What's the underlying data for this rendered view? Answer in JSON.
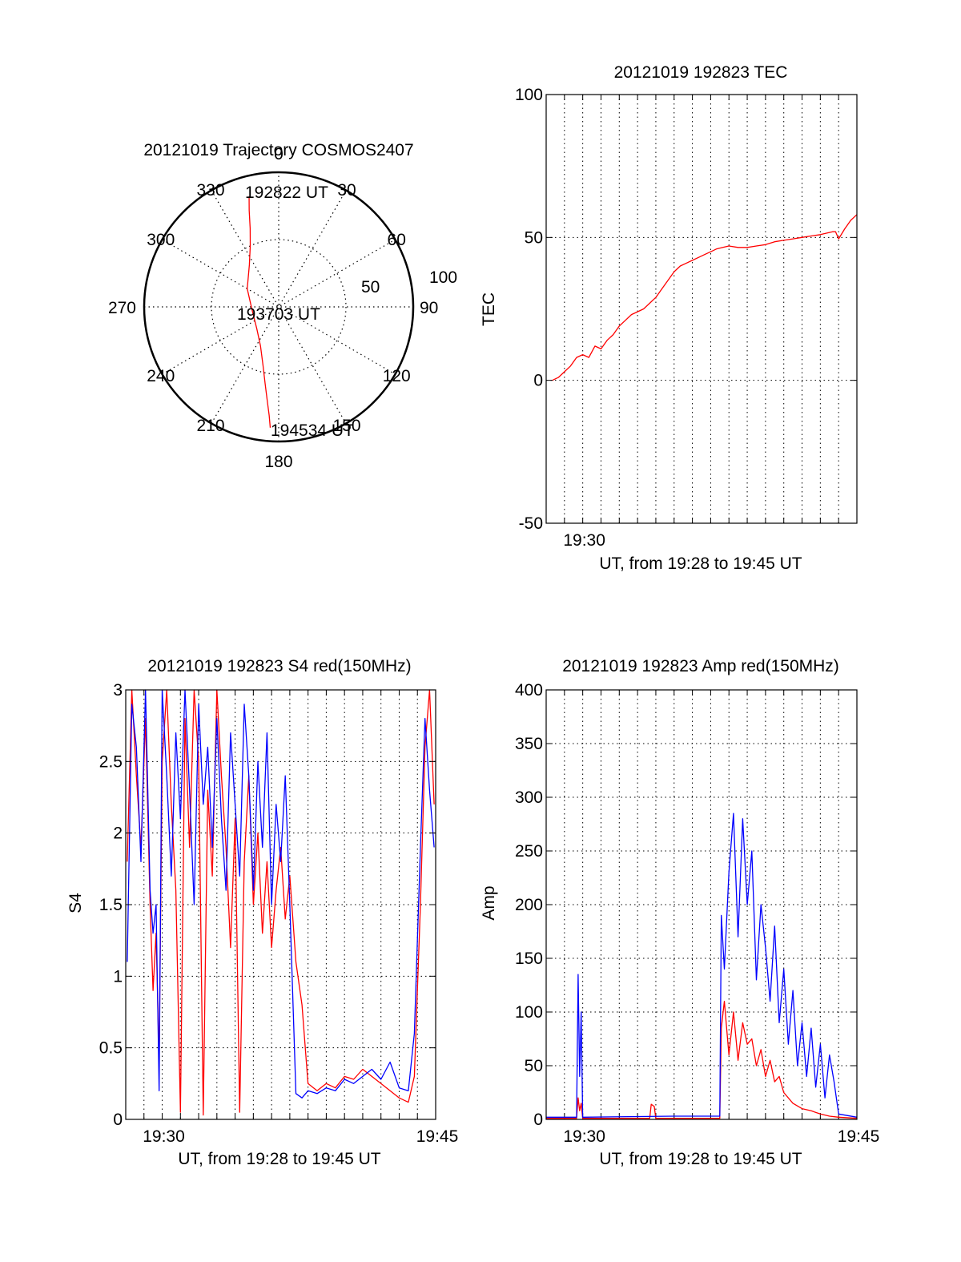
{
  "chart_data": [
    {
      "type": "polar",
      "title": "20121019 Trajectory COSMOS2407",
      "azimuth_labels": [
        "0",
        "30",
        "60",
        "90",
        "120",
        "150",
        "180",
        "210",
        "240",
        "270",
        "300",
        "330"
      ],
      "radial_labels": [
        "50",
        "100"
      ],
      "radial_max": 100,
      "annotations": [
        "192822 UT",
        "193703 UT",
        "194534 UT"
      ],
      "track": {
        "color": "#ff0000",
        "points": [
          [
            345,
            85
          ],
          [
            343,
            75
          ],
          [
            340,
            62
          ],
          [
            335,
            50
          ],
          [
            325,
            38
          ],
          [
            300,
            27
          ],
          [
            265,
            20
          ],
          [
            225,
            23
          ],
          [
            205,
            32
          ],
          [
            195,
            45
          ],
          [
            190,
            58
          ],
          [
            187,
            70
          ],
          [
            185,
            81
          ],
          [
            184,
            90
          ]
        ]
      }
    },
    {
      "type": "line",
      "title": "20121019 192823 TEC",
      "xlabel": "UT, from 19:28 to 19:45 UT",
      "ylabel": "TEC",
      "xlim": [
        "19:28",
        "19:45"
      ],
      "ylim": [
        -50,
        100
      ],
      "xticks": [
        "19:30"
      ],
      "yticks": [
        "-50",
        "0",
        "50",
        "100"
      ],
      "grid": true,
      "series": [
        {
          "color": "#ff0000",
          "x": [
            "19:28:20",
            "19:28:40",
            "19:29:00",
            "19:29:20",
            "19:29:40",
            "19:30:00",
            "19:30:20",
            "19:30:40",
            "19:31:00",
            "19:31:20",
            "19:31:40",
            "19:32:00",
            "19:32:20",
            "19:32:40",
            "19:33:00",
            "19:33:20",
            "19:33:40",
            "19:34:00",
            "19:34:20",
            "19:34:40",
            "19:35:00",
            "19:35:20",
            "19:35:40",
            "19:36:00",
            "19:36:20",
            "19:36:40",
            "19:37:00",
            "19:37:20",
            "19:37:40",
            "19:38:00",
            "19:38:30",
            "19:39:00",
            "19:39:30",
            "19:40:00",
            "19:40:30",
            "19:41:00",
            "19:41:30",
            "19:42:00",
            "19:42:30",
            "19:43:00",
            "19:43:20",
            "19:43:40",
            "19:43:50",
            "19:44:00",
            "19:44:20",
            "19:44:40",
            "19:45:00"
          ],
          "y": [
            0,
            1,
            3,
            5,
            8,
            9,
            8,
            12,
            11,
            14,
            16,
            19,
            21,
            23,
            24,
            25,
            27,
            29,
            32,
            35,
            38,
            40,
            41,
            42,
            43,
            44,
            45,
            46,
            46.5,
            47,
            46.5,
            46.5,
            47,
            47.5,
            48.5,
            49,
            49.5,
            50,
            50.5,
            51,
            51.5,
            52,
            52,
            49.5,
            53,
            56,
            58
          ]
        }
      ]
    },
    {
      "type": "line",
      "title": "20121019 192823 S4 red(150MHz)",
      "xlabel": "UT, from 19:28 to 19:45 UT",
      "ylabel": "S4",
      "xlim": [
        "19:28",
        "19:45"
      ],
      "ylim": [
        0,
        3
      ],
      "xticks": [
        "19:30",
        "19:45"
      ],
      "yticks": [
        "0",
        "0.5",
        "1",
        "1.5",
        "2",
        "2.5",
        "3"
      ],
      "grid": true,
      "series": [
        {
          "color": "#ff0000",
          "x": [
            "19:28:05",
            "19:28:20",
            "19:28:35",
            "19:28:50",
            "19:29:05",
            "19:29:20",
            "19:29:30",
            "19:29:40",
            "19:29:50",
            "19:30:00",
            "19:30:15",
            "19:30:30",
            "19:30:45",
            "19:31:00",
            "19:31:15",
            "19:31:30",
            "19:31:45",
            "19:32:00",
            "19:32:15",
            "19:32:30",
            "19:32:45",
            "19:33:00",
            "19:33:15",
            "19:33:30",
            "19:33:45",
            "19:34:00",
            "19:34:15",
            "19:34:30",
            "19:34:45",
            "19:35:00",
            "19:35:15",
            "19:35:30",
            "19:35:45",
            "19:36:00",
            "19:36:15",
            "19:36:30",
            "19:36:45",
            "19:37:00",
            "19:37:20",
            "19:37:40",
            "19:38:00",
            "19:38:30",
            "19:39:00",
            "19:39:30",
            "19:40:00",
            "19:40:30",
            "19:41:00",
            "19:41:30",
            "19:42:00",
            "19:42:30",
            "19:43:00",
            "19:43:30",
            "19:43:50",
            "19:44:10",
            "19:44:25",
            "19:44:40",
            "19:44:55"
          ],
          "y": [
            1.8,
            3,
            2.4,
            1.9,
            2.8,
            1.5,
            0.9,
            1.3,
            0.4,
            2.5,
            3,
            2.2,
            1.6,
            0.05,
            2.8,
            1.9,
            3,
            2.5,
            0.03,
            2.3,
            1.7,
            3,
            2.4,
            1.9,
            1.2,
            2.1,
            0.05,
            1.8,
            2.4,
            1.5,
            2,
            1.3,
            1.8,
            1.2,
            1.6,
            1.9,
            1.4,
            1.7,
            1.1,
            0.8,
            0.25,
            0.2,
            0.25,
            0.22,
            0.3,
            0.28,
            0.35,
            0.3,
            0.25,
            0.2,
            0.15,
            0.12,
            0.3,
            1.5,
            2.6,
            3,
            2.2
          ]
        },
        {
          "color": "#0000ff",
          "x": [
            "19:28:05",
            "19:28:20",
            "19:28:35",
            "19:28:50",
            "19:29:05",
            "19:29:20",
            "19:29:30",
            "19:29:40",
            "19:29:50",
            "19:30:00",
            "19:30:15",
            "19:30:30",
            "19:30:45",
            "19:31:00",
            "19:31:15",
            "19:31:30",
            "19:31:45",
            "19:32:00",
            "19:32:15",
            "19:32:30",
            "19:32:45",
            "19:33:00",
            "19:33:15",
            "19:33:30",
            "19:33:45",
            "19:34:00",
            "19:34:15",
            "19:34:30",
            "19:34:45",
            "19:35:00",
            "19:35:15",
            "19:35:30",
            "19:35:45",
            "19:36:00",
            "19:36:15",
            "19:36:30",
            "19:36:45",
            "19:37:00",
            "19:37:20",
            "19:37:40",
            "19:38:00",
            "19:38:30",
            "19:39:00",
            "19:39:30",
            "19:40:00",
            "19:40:30",
            "19:41:00",
            "19:41:30",
            "19:42:00",
            "19:42:30",
            "19:43:00",
            "19:43:30",
            "19:43:50",
            "19:44:10",
            "19:44:25",
            "19:44:40",
            "19:44:55"
          ],
          "y": [
            1.1,
            2.9,
            2.6,
            1.8,
            3,
            1.6,
            1.3,
            1.5,
            0.2,
            3,
            2.4,
            1.7,
            2.7,
            2.1,
            3,
            2.3,
            1.5,
            2.9,
            2.2,
            2.6,
            1.9,
            2.8,
            2.1,
            1.6,
            2.7,
            2.2,
            1.7,
            2.9,
            2.4,
            1.6,
            2.5,
            1.9,
            2.7,
            1.5,
            2.2,
            1.8,
            2.4,
            1.5,
            0.18,
            0.15,
            0.2,
            0.18,
            0.22,
            0.2,
            0.28,
            0.25,
            0.3,
            0.35,
            0.28,
            0.4,
            0.22,
            0.2,
            0.6,
            1.9,
            2.8,
            2.3,
            1.9
          ]
        }
      ]
    },
    {
      "type": "line",
      "title": "20121019 192823 Amp red(150MHz)",
      "xlabel": "UT, from 19:28 to 19:45 UT",
      "ylabel": "Amp",
      "xlim": [
        "19:28",
        "19:45"
      ],
      "ylim": [
        0,
        400
      ],
      "xticks": [
        "19:30",
        "19:45"
      ],
      "yticks": [
        "0",
        "50",
        "100",
        "150",
        "200",
        "250",
        "300",
        "350",
        "400"
      ],
      "grid": true,
      "series": [
        {
          "color": "#ff0000",
          "x": [
            "19:28:00",
            "19:29:40",
            "19:29:45",
            "19:29:50",
            "19:29:55",
            "19:30:00",
            "19:33:40",
            "19:33:45",
            "19:33:55",
            "19:34:00",
            "19:37:30",
            "19:37:35",
            "19:37:45",
            "19:38:00",
            "19:38:15",
            "19:38:30",
            "19:38:45",
            "19:39:00",
            "19:39:15",
            "19:39:30",
            "19:39:45",
            "19:40:00",
            "19:40:15",
            "19:40:30",
            "19:40:45",
            "19:41:00",
            "19:41:30",
            "19:42:00",
            "19:42:30",
            "19:43:00",
            "19:43:30",
            "19:44:00",
            "19:45:00"
          ],
          "y": [
            1,
            1,
            20,
            8,
            15,
            1,
            1,
            14,
            12,
            1,
            1,
            85,
            110,
            60,
            100,
            55,
            90,
            70,
            75,
            50,
            65,
            40,
            55,
            35,
            40,
            25,
            15,
            10,
            8,
            5,
            3,
            2,
            1
          ]
        },
        {
          "color": "#0000ff",
          "x": [
            "19:28:00",
            "19:29:40",
            "19:29:45",
            "19:29:50",
            "19:29:55",
            "19:30:00",
            "19:35:00",
            "19:37:30",
            "19:37:35",
            "19:37:45",
            "19:38:00",
            "19:38:15",
            "19:38:30",
            "19:38:45",
            "19:39:00",
            "19:39:15",
            "19:39:30",
            "19:39:45",
            "19:40:00",
            "19:40:15",
            "19:40:30",
            "19:40:45",
            "19:41:00",
            "19:41:15",
            "19:41:30",
            "19:41:45",
            "19:42:00",
            "19:42:15",
            "19:42:30",
            "19:42:45",
            "19:43:00",
            "19:43:15",
            "19:43:30",
            "19:43:45",
            "19:44:00",
            "19:45:00"
          ],
          "y": [
            2,
            2,
            135,
            40,
            100,
            2,
            3,
            3,
            190,
            140,
            230,
            285,
            170,
            280,
            200,
            250,
            130,
            200,
            160,
            110,
            180,
            90,
            140,
            70,
            120,
            50,
            90,
            40,
            85,
            30,
            70,
            20,
            60,
            35,
            5,
            2
          ]
        }
      ]
    }
  ]
}
